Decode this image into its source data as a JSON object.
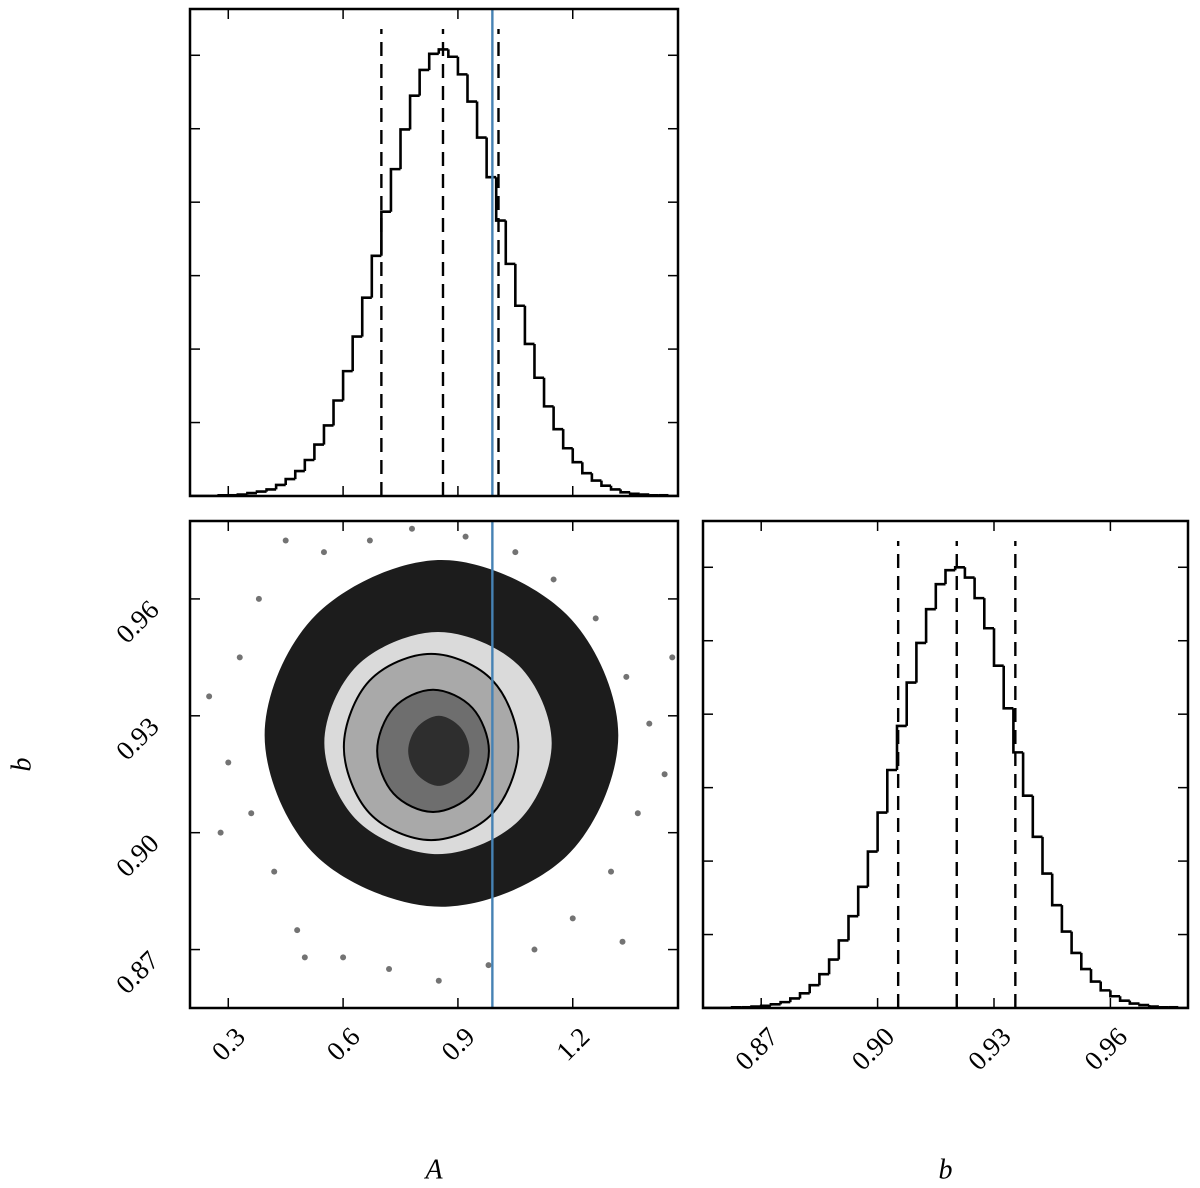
{
  "chart_data": [
    {
      "type": "histogram",
      "xlim": [
        0.2,
        1.475
      ],
      "ylim": [
        0,
        6.63
      ],
      "xticks": [
        0.3,
        0.6,
        0.9,
        1.2
      ],
      "yticks": [
        1,
        2,
        3,
        4,
        5,
        6
      ],
      "show_xtick_labels": false,
      "show_ytick_labels": false,
      "color": "#000000",
      "quantile_color": "#000000",
      "truth_color": "#4682b4",
      "bins": [
        0.2,
        0.225,
        0.25,
        0.275,
        0.3,
        0.325,
        0.35,
        0.375,
        0.4,
        0.425,
        0.45,
        0.475,
        0.5,
        0.525,
        0.55,
        0.575,
        0.6,
        0.625,
        0.65,
        0.675,
        0.7,
        0.725,
        0.75,
        0.775,
        0.8,
        0.825,
        0.85,
        0.875,
        0.9,
        0.925,
        0.95,
        0.975,
        1.0,
        1.025,
        1.05,
        1.075,
        1.1,
        1.125,
        1.15,
        1.175,
        1.2,
        1.225,
        1.25,
        1.275,
        1.3,
        1.325,
        1.35,
        1.375,
        1.4,
        1.425,
        1.45,
        1.475
      ],
      "values": [
        0,
        0,
        0,
        0.01,
        0.01,
        0.02,
        0.04,
        0.06,
        0.09,
        0.15,
        0.23,
        0.34,
        0.49,
        0.7,
        0.96,
        1.3,
        1.7,
        2.17,
        2.7,
        3.27,
        3.87,
        4.45,
        4.99,
        5.45,
        5.8,
        6.02,
        6.08,
        5.98,
        5.74,
        5.37,
        4.88,
        4.34,
        3.75,
        3.16,
        2.59,
        2.07,
        1.61,
        1.22,
        0.91,
        0.65,
        0.46,
        0.31,
        0.21,
        0.14,
        0.09,
        0.05,
        0.03,
        0.02,
        0.01,
        0.01,
        0
      ],
      "quantiles": [
        0.7,
        0.861,
        1.006
      ],
      "truth": 0.99
    },
    {
      "type": "scatter",
      "xlabel": "A",
      "ylabel": "b",
      "xlim": [
        0.2,
        1.475
      ],
      "ylim": [
        0.855,
        0.98
      ],
      "xticks": [
        0.3,
        0.6,
        0.9,
        1.2
      ],
      "yticks": [
        0.87,
        {
          "value": 0.9,
          "label": "0.90"
        },
        0.93,
        0.96
      ],
      "show_xtick_labels": true,
      "show_ytick_labels": true,
      "color": "#000000",
      "truth_color": "#4682b4",
      "truth": 0.99,
      "x": [
        0.25,
        0.3,
        0.33,
        0.36,
        0.38,
        0.42,
        0.45,
        0.48,
        0.55,
        0.6,
        0.67,
        0.72,
        0.78,
        0.85,
        0.92,
        0.98,
        1.05,
        1.1,
        1.15,
        1.2,
        1.26,
        1.3,
        1.34,
        1.37,
        1.4,
        1.44,
        1.46,
        0.28,
        1.33,
        0.5
      ],
      "y": [
        0.935,
        0.918,
        0.945,
        0.905,
        0.96,
        0.89,
        0.975,
        0.875,
        0.972,
        0.868,
        0.975,
        0.865,
        0.978,
        0.862,
        0.976,
        0.866,
        0.972,
        0.87,
        0.965,
        0.878,
        0.955,
        0.89,
        0.94,
        0.905,
        0.928,
        0.915,
        0.945,
        0.9,
        0.872,
        0.868
      ],
      "contours": [
        {
          "color": "#1c1c1c",
          "x": [
            1.319,
            1.184,
            0.857,
            0.53,
            0.395,
            0.53,
            0.857,
            1.184
          ],
          "y": [
            0.925,
            0.956,
            0.97,
            0.956,
            0.925,
            0.894,
            0.881,
            0.894
          ]
        },
        {
          "color": "#dadada",
          "x": [
            1.145,
            1.058,
            0.848,
            0.638,
            0.551,
            0.638,
            0.848,
            1.058
          ],
          "y": [
            0.923,
            0.943,
            0.9515,
            0.943,
            0.923,
            0.903,
            0.8945,
            0.903
          ]
        },
        {
          "color": "#a9a9a9",
          "line_color": "#000000",
          "x": [
            1.058,
            0.991,
            0.83,
            0.669,
            0.602,
            0.669,
            0.83,
            0.991
          ],
          "y": [
            0.922,
            0.939,
            0.9459,
            0.939,
            0.922,
            0.905,
            0.8981,
            0.905
          ]
        },
        {
          "color": "#6e6e6e",
          "line_color": "#000000",
          "x": [
            0.981,
            0.938,
            0.835,
            0.732,
            0.689,
            0.732,
            0.835,
            0.938
          ],
          "y": [
            0.921,
            0.932,
            0.9367,
            0.932,
            0.921,
            0.91,
            0.9053,
            0.91
          ]
        },
        {
          "color": "#2e2e2e",
          "x": [
            0.93,
            0.907,
            0.85,
            0.793,
            0.77,
            0.793,
            0.85,
            0.907
          ],
          "y": [
            0.921,
            0.927,
            0.93,
            0.927,
            0.921,
            0.915,
            0.912,
            0.915
          ]
        }
      ]
    },
    {
      "type": "histogram",
      "xlabel": "b",
      "xlim": [
        0.855,
        0.98
      ],
      "ylim": [
        0,
        6.63
      ],
      "xticks": [
        0.87,
        {
          "value": 0.9,
          "label": "0.90"
        },
        0.93,
        0.96
      ],
      "yticks": [
        1,
        2,
        3,
        4,
        5,
        6
      ],
      "show_xtick_labels": true,
      "show_ytick_labels": false,
      "color": "#000000",
      "quantile_color": "#000000",
      "bins": [
        0.855,
        0.8575,
        0.86,
        0.8625,
        0.865,
        0.8675,
        0.87,
        0.8725,
        0.875,
        0.8775,
        0.88,
        0.8825,
        0.885,
        0.8875,
        0.89,
        0.8925,
        0.895,
        0.8975,
        0.9,
        0.9025,
        0.905,
        0.9075,
        0.91,
        0.9125,
        0.915,
        0.9175,
        0.92,
        0.9225,
        0.925,
        0.9275,
        0.93,
        0.9325,
        0.935,
        0.9375,
        0.94,
        0.9425,
        0.945,
        0.9475,
        0.95,
        0.9525,
        0.955,
        0.9575,
        0.96,
        0.9625,
        0.965,
        0.9675,
        0.97,
        0.9725,
        0.975,
        0.9775,
        0.98
      ],
      "values": [
        0,
        0,
        0,
        0.01,
        0.01,
        0.02,
        0.03,
        0.05,
        0.08,
        0.13,
        0.2,
        0.31,
        0.46,
        0.66,
        0.92,
        1.25,
        1.65,
        2.13,
        2.66,
        3.24,
        3.84,
        4.43,
        4.97,
        5.43,
        5.77,
        5.96,
        6.0,
        5.86,
        5.58,
        5.17,
        4.66,
        4.08,
        3.48,
        2.89,
        2.33,
        1.83,
        1.4,
        1.04,
        0.75,
        0.53,
        0.36,
        0.24,
        0.16,
        0.1,
        0.06,
        0.04,
        0.02,
        0.01,
        0.01,
        0
      ],
      "quantiles": [
        0.9053,
        0.9204,
        0.9355
      ]
    }
  ]
}
